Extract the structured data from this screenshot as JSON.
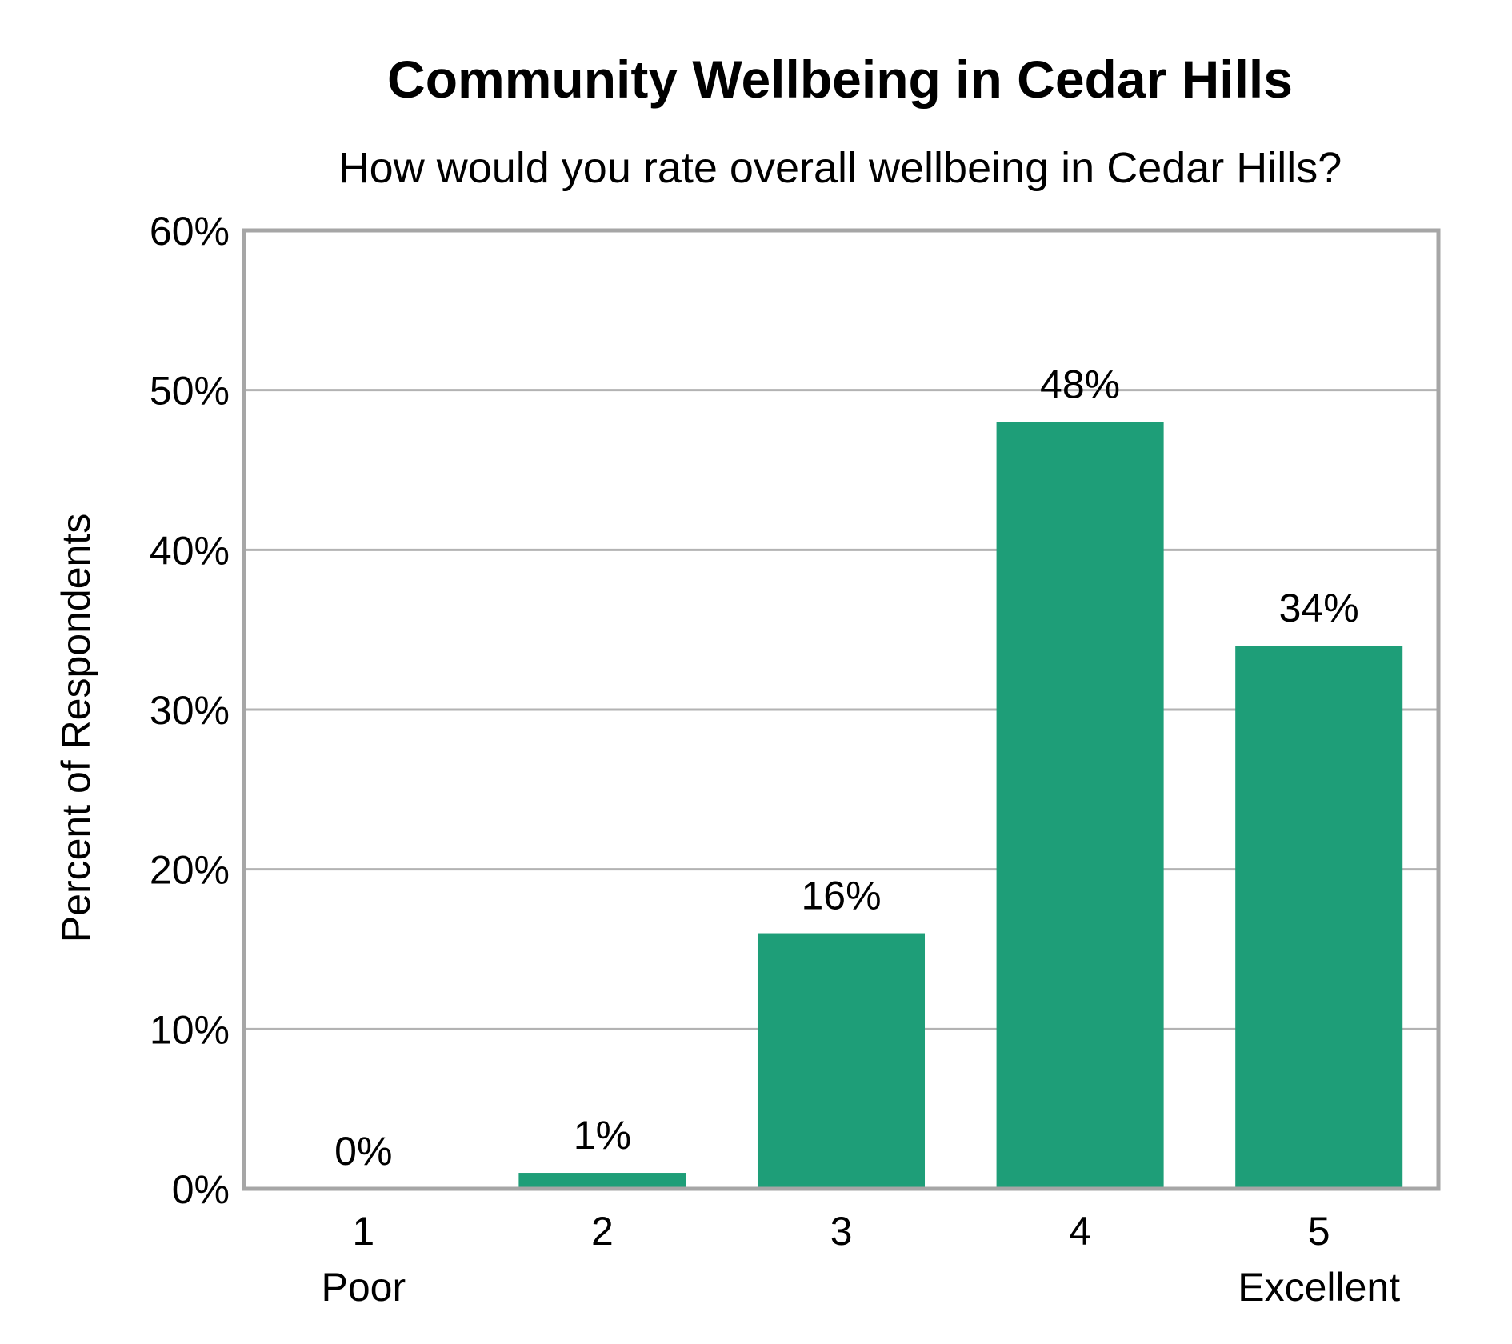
{
  "chart_data": {
    "type": "bar",
    "title": "Community Wellbeing in Cedar Hills",
    "subtitle": "How would you rate overall wellbeing in Cedar Hills?",
    "ylabel": "Percent of Respondents",
    "xlabel": "",
    "ylim": [
      0,
      60
    ],
    "yticks": [
      0,
      10,
      20,
      30,
      40,
      50,
      60
    ],
    "ytick_labels": [
      "0%",
      "10%",
      "20%",
      "30%",
      "40%",
      "50%",
      "60%"
    ],
    "categories": [
      "1",
      "2",
      "3",
      "4",
      "5"
    ],
    "category_sublabels": [
      "Poor",
      "",
      "",
      "",
      "Excellent"
    ],
    "values": [
      0,
      1,
      16,
      48,
      34
    ],
    "data_labels": [
      "0%",
      "1%",
      "16%",
      "48%",
      "34%"
    ],
    "grid": true,
    "legend": "none",
    "colors": {
      "bar": "#1e9e78",
      "grid": "#b3b3b3",
      "axis": "#a6a6a6",
      "background": "#ffffff"
    }
  }
}
